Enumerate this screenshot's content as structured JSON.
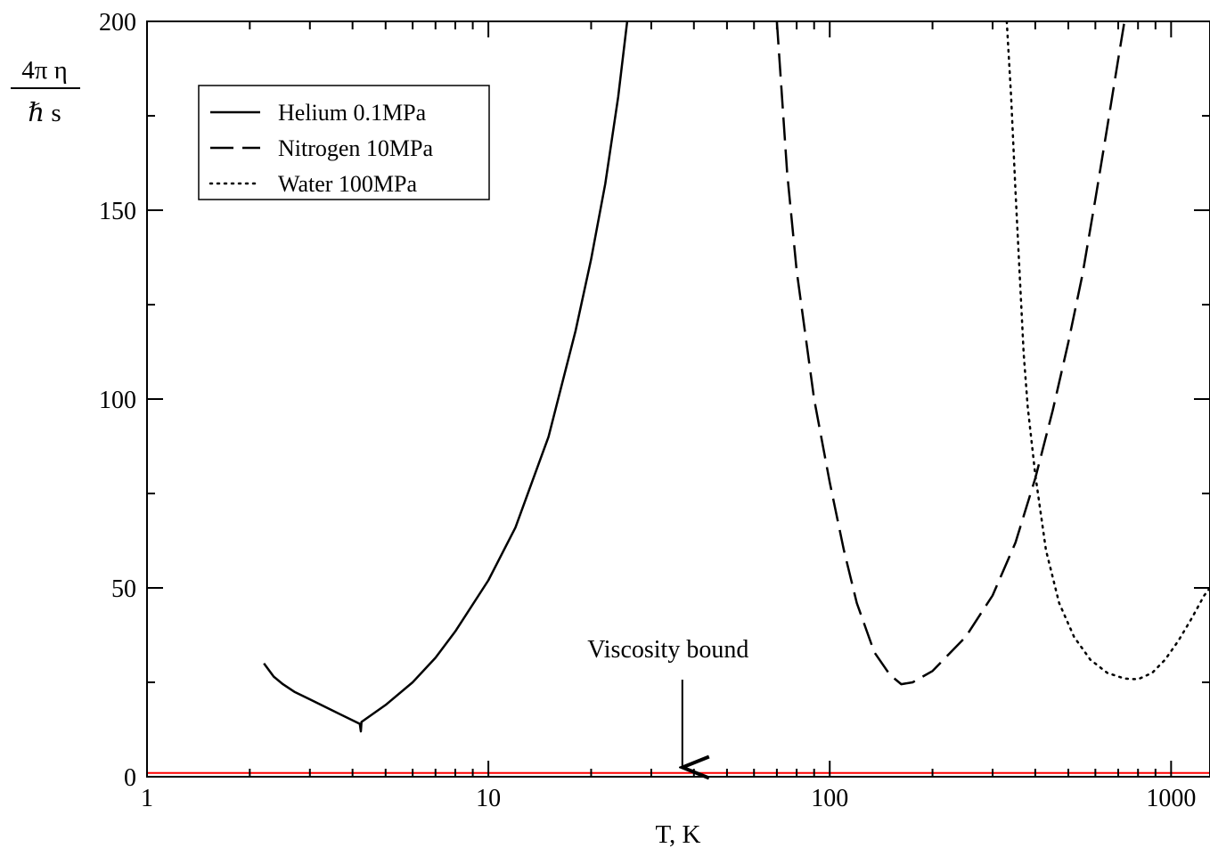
{
  "chart_data": {
    "type": "line",
    "title": "",
    "xlabel": "T, K",
    "ylabel_numerator": "4π η",
    "ylabel_denominator": "ℏ s",
    "x_scale": "log",
    "xlim": [
      1,
      1300
    ],
    "ylim": [
      0,
      200
    ],
    "x_ticks": [
      1,
      10,
      100,
      1000
    ],
    "x_tick_labels": [
      "1",
      "10",
      "100",
      "1000"
    ],
    "y_ticks": [
      0,
      50,
      100,
      150,
      200
    ],
    "y_tick_labels": [
      "0",
      "50",
      "100",
      "150",
      "200"
    ],
    "grid": false,
    "legend_position": "top-left",
    "series": [
      {
        "name": "Helium 0.1MPa",
        "style": "solid",
        "color": "#000000",
        "points": [
          [
            2.2,
            30
          ],
          [
            2.35,
            26.5
          ],
          [
            2.5,
            24.5
          ],
          [
            2.7,
            22.5
          ],
          [
            3.0,
            20.5
          ],
          [
            3.5,
            17.5
          ],
          [
            4.2,
            14
          ],
          [
            4.23,
            12
          ],
          [
            4.25,
            14.5
          ],
          [
            5,
            19
          ],
          [
            6,
            25
          ],
          [
            7,
            31.5
          ],
          [
            8,
            38.5
          ],
          [
            10,
            52
          ],
          [
            12,
            66
          ],
          [
            15,
            90
          ],
          [
            18,
            118
          ],
          [
            20,
            137
          ],
          [
            22,
            157
          ],
          [
            24,
            180
          ],
          [
            25.5,
            200
          ]
        ]
      },
      {
        "name": "Nitrogen 10MPa",
        "style": "dashed",
        "color": "#000000",
        "points": [
          [
            70,
            200
          ],
          [
            75,
            160
          ],
          [
            80,
            134
          ],
          [
            90,
            100
          ],
          [
            100,
            78
          ],
          [
            110,
            60
          ],
          [
            120,
            46
          ],
          [
            135,
            33
          ],
          [
            150,
            27
          ],
          [
            162,
            24.5
          ],
          [
            175,
            25
          ],
          [
            200,
            28
          ],
          [
            250,
            37
          ],
          [
            300,
            48
          ],
          [
            350,
            62
          ],
          [
            400,
            79
          ],
          [
            450,
            97
          ],
          [
            500,
            115
          ],
          [
            550,
            133
          ],
          [
            600,
            153
          ],
          [
            650,
            172
          ],
          [
            700,
            190
          ],
          [
            730,
            200
          ]
        ]
      },
      {
        "name": "Water 100MPa",
        "style": "dotted",
        "color": "#000000",
        "points": [
          [
            330,
            200
          ],
          [
            340,
            180
          ],
          [
            350,
            155
          ],
          [
            360,
            133
          ],
          [
            370,
            112
          ],
          [
            380,
            98
          ],
          [
            400,
            80
          ],
          [
            430,
            60
          ],
          [
            470,
            46
          ],
          [
            520,
            37
          ],
          [
            580,
            31
          ],
          [
            650,
            27.5
          ],
          [
            730,
            26
          ],
          [
            800,
            25.8
          ],
          [
            880,
            27.5
          ],
          [
            960,
            31
          ],
          [
            1050,
            36
          ],
          [
            1150,
            42
          ],
          [
            1250,
            48
          ],
          [
            1300,
            50
          ]
        ]
      },
      {
        "name": "",
        "style": "solid",
        "color": "#ff0000",
        "points": [
          [
            1,
            1
          ],
          [
            1300,
            1
          ]
        ]
      }
    ],
    "annotation": {
      "text": "Viscosity bound",
      "arrow_x": 37,
      "arrow_from_y": 25,
      "arrow_to_y": 2
    }
  }
}
